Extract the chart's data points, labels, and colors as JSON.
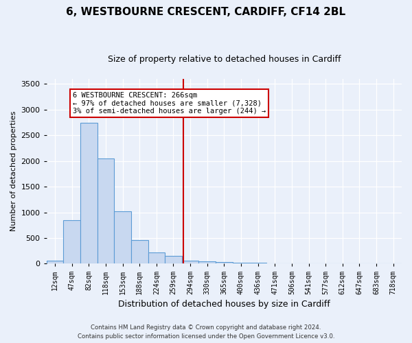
{
  "title": "6, WESTBOURNE CRESCENT, CARDIFF, CF14 2BL",
  "subtitle": "Size of property relative to detached houses in Cardiff",
  "xlabel": "Distribution of detached houses by size in Cardiff",
  "ylabel": "Number of detached properties",
  "bar_color": "#c8d8f0",
  "bar_edge_color": "#5b9bd5",
  "categories": [
    "12sqm",
    "47sqm",
    "82sqm",
    "118sqm",
    "153sqm",
    "188sqm",
    "224sqm",
    "259sqm",
    "294sqm",
    "330sqm",
    "365sqm",
    "400sqm",
    "436sqm",
    "471sqm",
    "506sqm",
    "541sqm",
    "577sqm",
    "612sqm",
    "647sqm",
    "683sqm",
    "718sqm"
  ],
  "values": [
    60,
    850,
    2750,
    2050,
    1020,
    460,
    220,
    150,
    65,
    45,
    35,
    20,
    15,
    8,
    5,
    3,
    2,
    1,
    1,
    1,
    1
  ],
  "ylim": [
    0,
    3600
  ],
  "yticks": [
    0,
    500,
    1000,
    1500,
    2000,
    2500,
    3000,
    3500
  ],
  "vline_x": 7.58,
  "vline_color": "#cc0000",
  "annotation_title": "6 WESTBOURNE CRESCENT: 266sqm",
  "annotation_line1": "← 97% of detached houses are smaller (7,328)",
  "annotation_line2": "3% of semi-detached houses are larger (244) →",
  "annotation_box_color": "#ffffff",
  "annotation_box_edge": "#cc0000",
  "footnote1": "Contains HM Land Registry data © Crown copyright and database right 2024.",
  "footnote2": "Contains public sector information licensed under the Open Government Licence v3.0.",
  "background_color": "#eaf0fa",
  "grid_color": "#ffffff",
  "title_fontsize": 11,
  "subtitle_fontsize": 9,
  "ylabel_fontsize": 8,
  "xlabel_fontsize": 9,
  "tick_fontsize": 8,
  "xtick_fontsize": 7
}
